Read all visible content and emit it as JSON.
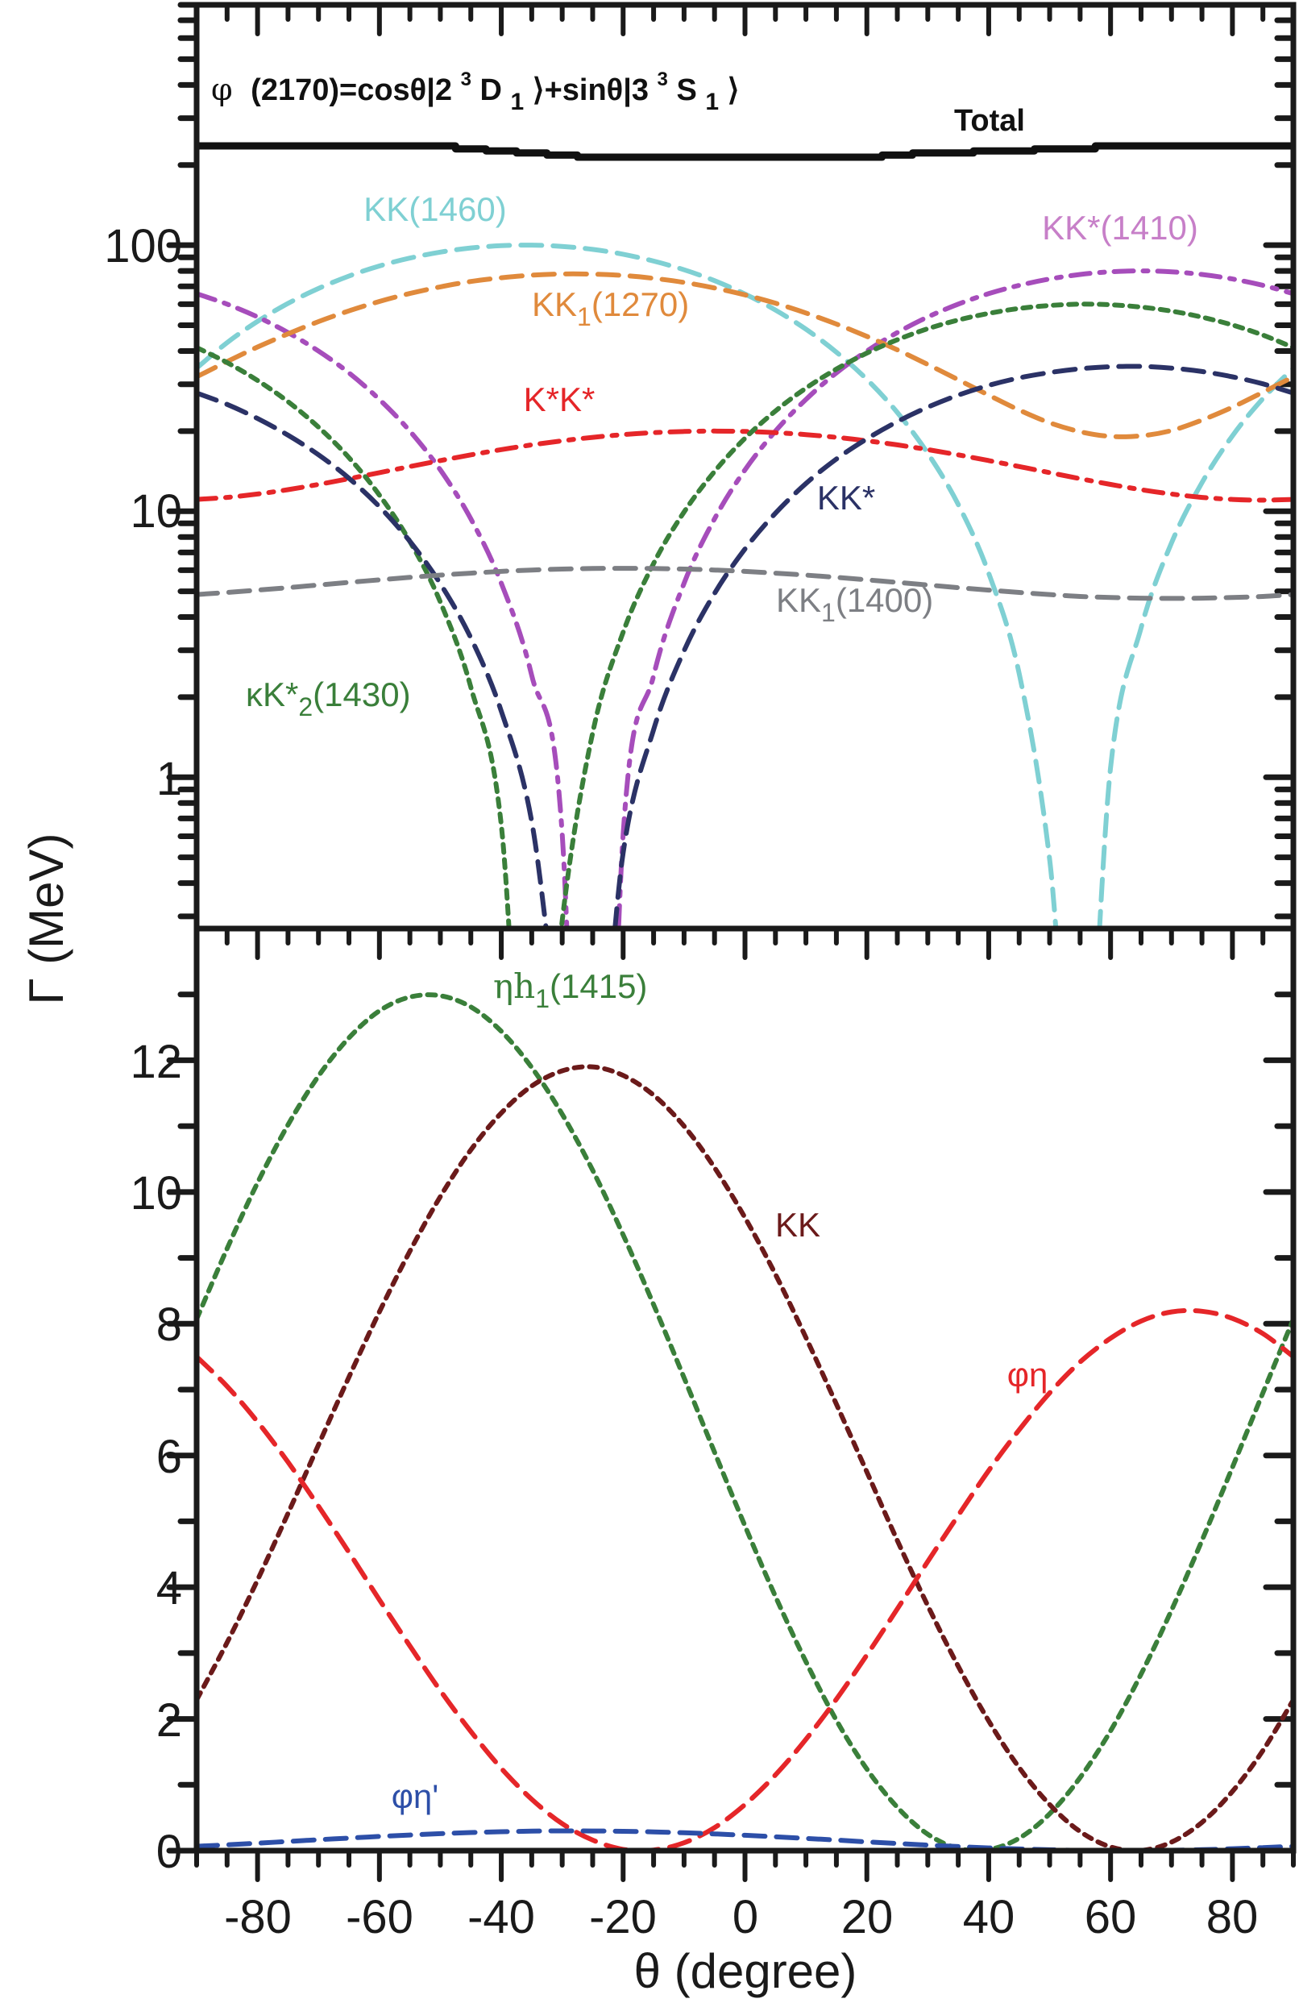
{
  "chart_data": [
    {
      "panel": "top",
      "type": "line",
      "yscale": "log",
      "title": "φ (2170)=cosθ|2³D₁⟩+sinθ|3³S₁⟩",
      "title_parts": {
        "phi": "φ",
        "mass": "(2170)=cosθ|2",
        "sup1": "3",
        "d": "D",
        "sub1": "1",
        "mid": "⟩+sinθ|3",
        "sup2": "3",
        "s": "S",
        "sub2": "1",
        "end": "⟩"
      },
      "xlim": [
        -90,
        90
      ],
      "ylim": [
        0.27,
        800
      ],
      "ytick_labels": [
        "1",
        "10",
        "100"
      ],
      "ytick_values": [
        1,
        10,
        100
      ],
      "x": [
        -90,
        -85,
        -80,
        -75,
        -70,
        -65,
        -60,
        -55,
        -50,
        -45,
        -40,
        -35,
        -30,
        -25,
        -20,
        -15,
        -10,
        -5,
        0,
        5,
        10,
        15,
        20,
        25,
        30,
        35,
        40,
        45,
        50,
        55,
        60,
        65,
        70,
        75,
        80,
        85,
        90
      ],
      "series": [
        {
          "name": "Total",
          "label": "Total",
          "color": "#111111",
          "style": "solid",
          "values": [
            236,
            236,
            236,
            236,
            236,
            236,
            236,
            236,
            236,
            230,
            226,
            222,
            218,
            214,
            214,
            214,
            214,
            214,
            214,
            214,
            214,
            214,
            214,
            218,
            222,
            222,
            226,
            226,
            230,
            230,
            236,
            236,
            236,
            236,
            236,
            236,
            236
          ]
        },
        {
          "name": "KK(1460)",
          "label": "KK(1460)",
          "color": "#7fd0d3",
          "style": "dash",
          "values": [
            34.5,
            43.0,
            51.7,
            60.4,
            68.7,
            76.5,
            83.5,
            89.4,
            94.1,
            97.6,
            99.5,
            100,
            98.9,
            96.4,
            92.4,
            87.1,
            80.8,
            73.5,
            65.5,
            57.0,
            48.3,
            39.6,
            31.3,
            23.5,
            16.5,
            10.6,
            5.85,
            2.45,
            0.49,
            0.03,
            1.09,
            3.64,
            7.6,
            12.8,
            19.2,
            26.5,
            34.5
          ]
        },
        {
          "name": "KK*(1410)",
          "label": "KK*(1410)",
          "color": "#a64dbb",
          "style": "dashdot",
          "values": [
            65.7,
            60,
            53.7,
            46.9,
            40,
            33.1,
            26.3,
            20,
            14.3,
            9.36,
            5.36,
            2.41,
            0.61,
            0,
            0.61,
            2.41,
            5.36,
            9.36,
            14.3,
            20,
            26.3,
            33.1,
            40,
            46.9,
            53.7,
            60,
            65.7,
            70.6,
            74.6,
            77.6,
            79.4,
            80,
            79.4,
            77.6,
            74.6,
            70.6,
            65.7
          ]
        },
        {
          "name": "KK1(1270)",
          "label_main": "KK",
          "label_sub": "1",
          "label_tail": "(1270)",
          "color": "#e08a3c",
          "style": "dash",
          "values": [
            32.0,
            36.5,
            41.4,
            46.4,
            51.6,
            56.6,
            61.4,
            65.8,
            69.7,
            73.0,
            75.4,
            77.1,
            77.9,
            77.8,
            76.9,
            75.0,
            72.4,
            69.0,
            65.0,
            60.5,
            55.6,
            50.5,
            45.4,
            40.4,
            35.6,
            31.2,
            27.3,
            24.0,
            21.5,
            19.9,
            19.1,
            19.2,
            20.1,
            22.0,
            24.6,
            28.0,
            32.0
          ]
        },
        {
          "name": "K*K*",
          "label": "K*K*",
          "color": "#e52629",
          "style": "dashdot",
          "values": [
            11.07,
            11.27,
            11.6,
            12.05,
            12.61,
            13.25,
            13.96,
            14.72,
            15.5,
            16.28,
            17.04,
            17.75,
            18.39,
            18.95,
            19.4,
            19.73,
            19.93,
            20,
            19.93,
            19.73,
            19.4,
            18.95,
            18.39,
            17.75,
            17.04,
            16.28,
            15.5,
            14.72,
            13.96,
            13.25,
            12.61,
            12.05,
            11.6,
            11.27,
            11.07,
            11.0,
            11.07
          ]
        },
        {
          "name": "κK*2(1430)",
          "label_main": "κK*",
          "label_sub": "2",
          "label_tail": "(1430)",
          "color": "#3a7f3a",
          "style": "dot",
          "values": [
            41.2,
            36.2,
            31.0,
            25.8,
            20.7,
            15.9,
            11.5,
            7.7,
            4.56,
            2.18,
            0.66,
            0.018,
            0.29,
            1.47,
            3.51,
            6.36,
            9.93,
            14.1,
            18.8,
            23.8,
            29.0,
            34.2,
            39.3,
            44.1,
            48.5,
            52.3,
            55.4,
            57.8,
            59.3,
            60,
            59.7,
            58.5,
            56.5,
            53.6,
            50.1,
            45.9,
            41.2
          ]
        },
        {
          "name": "KK*",
          "label": "KK*",
          "color": "#2b3266",
          "style": "dash",
          "values": [
            27.8,
            25.2,
            22.3,
            19.3,
            16.3,
            13.3,
            10.4,
            7.71,
            5.34,
            3.34,
            1.77,
            0.68,
            0.096,
            0.043,
            0.52,
            1.51,
            2.99,
            4.91,
            7.21,
            9.83,
            12.7,
            15.7,
            18.7,
            21.7,
            24.6,
            27.3,
            29.7,
            31.7,
            33.2,
            34.3,
            34.9,
            35.0,
            34.5,
            33.5,
            32.0,
            30.1,
            27.8
          ]
        },
        {
          "name": "KK1(1400)",
          "label_main": "KK",
          "label_sub": "1",
          "label_tail": "(1400)",
          "color": "#7d7f84",
          "style": "dash",
          "values": [
            4.86,
            4.95,
            5.05,
            5.16,
            5.28,
            5.4,
            5.52,
            5.64,
            5.75,
            5.85,
            5.94,
            6.01,
            6.06,
            6.09,
            6.1,
            6.09,
            6.06,
            6.01,
            5.94,
            5.85,
            5.75,
            5.64,
            5.52,
            5.4,
            5.28,
            5.16,
            5.05,
            4.95,
            4.86,
            4.78,
            4.74,
            4.71,
            4.7,
            4.71,
            4.74,
            4.78,
            4.86
          ]
        }
      ]
    },
    {
      "panel": "bottom",
      "type": "line",
      "yscale": "linear",
      "xlim": [
        -90,
        90
      ],
      "ylim": [
        0,
        14
      ],
      "xlabel": "θ (degree)",
      "ylabel": "Γ (MeV)",
      "xtick_labels": [
        "-80",
        "-60",
        "-40",
        "-20",
        "0",
        "20",
        "40",
        "60",
        "80"
      ],
      "xtick_values": [
        -80,
        -60,
        -40,
        -20,
        0,
        20,
        40,
        60,
        80
      ],
      "ytick_labels": [
        "0",
        "2",
        "4",
        "6",
        "8",
        "10",
        "12"
      ],
      "ytick_values": [
        0,
        2,
        4,
        6,
        8,
        10,
        12
      ],
      "x": [
        -90,
        -85,
        -80,
        -75,
        -70,
        -65,
        -60,
        -55,
        -50,
        -45,
        -40,
        -35,
        -30,
        -25,
        -20,
        -15,
        -10,
        -5,
        0,
        5,
        10,
        15,
        20,
        25,
        30,
        35,
        40,
        45,
        50,
        55,
        60,
        65,
        70,
        75,
        80,
        85,
        90
      ],
      "series": [
        {
          "name": "ηh1(1415)",
          "label_main": "ηh",
          "label_sub": "1",
          "label_tail": "(1415)",
          "color": "#3a7f3a",
          "style": "dot",
          "values": [
            8.07,
            9.14,
            10.14,
            11.02,
            11.76,
            12.34,
            12.75,
            12.96,
            12.98,
            12.81,
            12.44,
            11.89,
            11.18,
            10.33,
            9.35,
            8.29,
            7.18,
            6.05,
            4.93,
            3.86,
            2.87,
            1.98,
            1.24,
            0.66,
            0.25,
            0.035,
            0.016,
            0.19,
            0.56,
            1.11,
            1.82,
            2.68,
            3.65,
            4.71,
            5.82,
            6.95,
            8.07
          ]
        },
        {
          "name": "KK",
          "label": "KK",
          "color": "#6b1a1a",
          "style": "dot",
          "values": [
            2.29,
            3.16,
            4.11,
            5.12,
            6.16,
            7.19,
            8.18,
            9.1,
            9.93,
            10.64,
            11.2,
            11.61,
            11.84,
            11.9,
            11.77,
            11.47,
            11.0,
            10.37,
            9.61,
            8.75,
            7.79,
            6.78,
            5.75,
            4.71,
            3.72,
            2.8,
            1.97,
            1.26,
            0.7,
            0.29,
            0.058,
            0.004,
            0.13,
            0.43,
            0.9,
            1.52,
            2.29
          ]
        },
        {
          "name": "φη",
          "label": "φη",
          "color": "#e52629",
          "style": "dash",
          "values": [
            7.5,
            7.05,
            6.51,
            5.9,
            5.23,
            4.53,
            3.81,
            3.11,
            2.43,
            1.81,
            1.25,
            0.78,
            0.41,
            0.16,
            0.02,
            0.01,
            0.12,
            0.35,
            0.7,
            1.15,
            1.69,
            2.3,
            2.97,
            3.67,
            4.39,
            5.09,
            5.77,
            6.39,
            6.95,
            7.42,
            7.78,
            8.04,
            8.18,
            8.19,
            8.08,
            7.85,
            7.5
          ]
        },
        {
          "name": "φη'",
          "label": "φη'",
          "color": "#2d4fa8",
          "style": "dash",
          "values": [
            0.066,
            0.089,
            0.114,
            0.14,
            0.166,
            0.191,
            0.216,
            0.238,
            0.258,
            0.275,
            0.287,
            0.296,
            0.3,
            0.299,
            0.294,
            0.285,
            0.272,
            0.254,
            0.234,
            0.211,
            0.186,
            0.161,
            0.134,
            0.109,
            0.084,
            0.062,
            0.042,
            0.026,
            0.013,
            0.004,
            0.0004,
            0.0008,
            0.006,
            0.015,
            0.029,
            0.046,
            0.066
          ]
        }
      ]
    }
  ]
}
